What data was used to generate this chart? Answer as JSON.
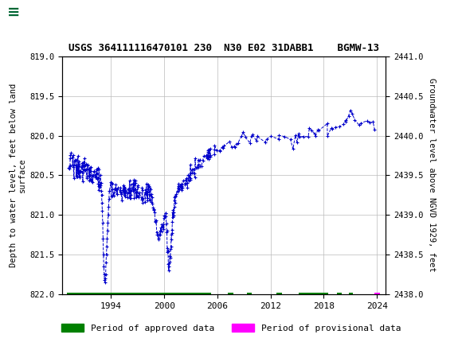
{
  "title": "USGS 364111116470101 230  N30 E02 31DABB1    BGMW-13",
  "ylabel_left": "Depth to water level, feet below land\nsurface",
  "ylabel_right": "Groundwater level above NGVD 1929, feet",
  "ylim_left": [
    822.0,
    819.0
  ],
  "ylim_right": [
    2438.0,
    2441.0
  ],
  "xlim": [
    1988.5,
    2025.0
  ],
  "xticks": [
    1994,
    2000,
    2006,
    2012,
    2018,
    2024
  ],
  "yticks_left": [
    819.0,
    819.5,
    820.0,
    820.5,
    821.0,
    821.5,
    822.0
  ],
  "yticks_right": [
    2438.0,
    2438.5,
    2439.0,
    2439.5,
    2440.0,
    2440.5,
    2441.0
  ],
  "line_color": "#0000CC",
  "approved_color": "#008000",
  "provisional_color": "#FF00FF",
  "background_color": "#FFFFFF",
  "header_color": "#006633",
  "grid_color": "#BBBBBB",
  "approved_periods": [
    [
      1989.0,
      2005.3
    ],
    [
      2007.2,
      2007.8
    ],
    [
      2009.3,
      2009.9
    ],
    [
      2012.7,
      2013.3
    ],
    [
      2015.2,
      2018.5
    ],
    [
      2019.5,
      2020.0
    ],
    [
      2020.8,
      2021.3
    ]
  ],
  "provisional_periods": [
    [
      2023.7,
      2024.3
    ]
  ]
}
